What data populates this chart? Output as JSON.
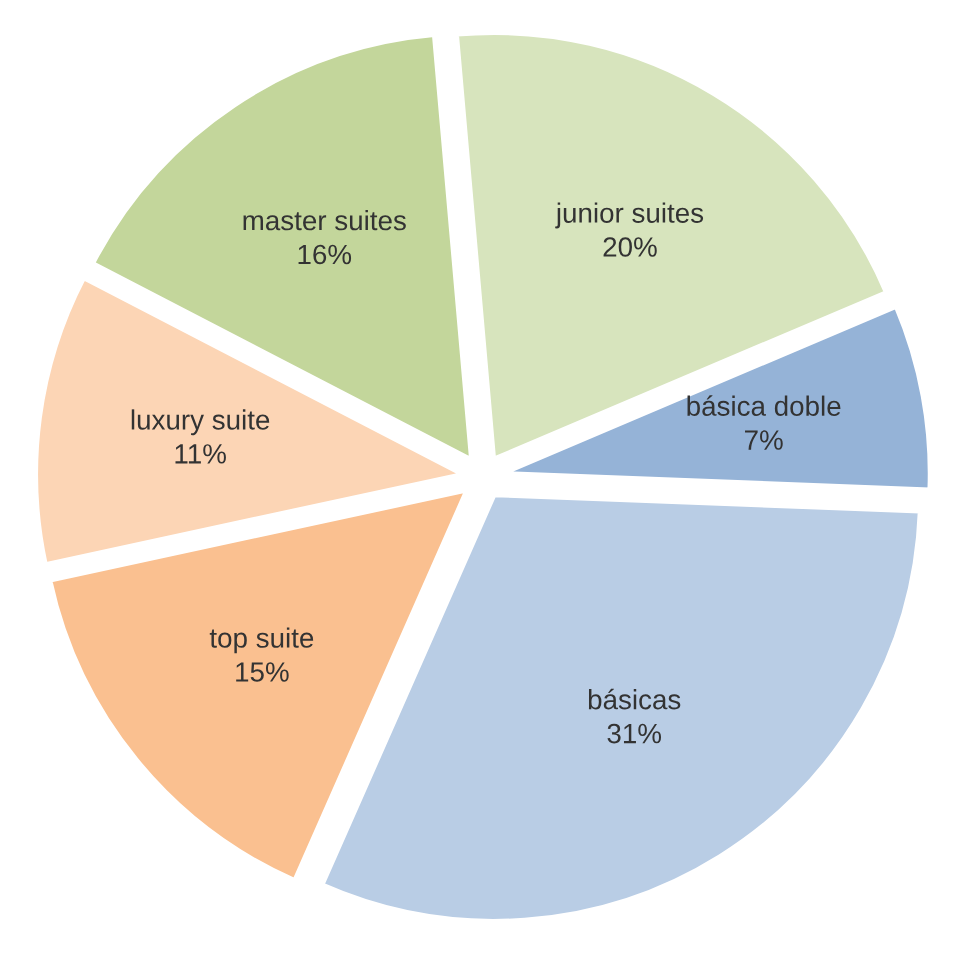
{
  "chart_data": {
    "type": "pie",
    "categories": [
      "junior suites",
      "básica doble",
      "básicas",
      "top suite",
      "luxury suite",
      "master suites"
    ],
    "values": [
      20,
      7,
      31,
      15,
      11,
      16
    ],
    "value_labels": [
      "20%",
      "7%",
      "31%",
      "15%",
      "11%",
      "16%"
    ],
    "colors": [
      "#d7e4bd",
      "#95b3d7",
      "#b9cde5",
      "#fac090",
      "#fcd5b5",
      "#c3d69b"
    ],
    "legend": false
  }
}
